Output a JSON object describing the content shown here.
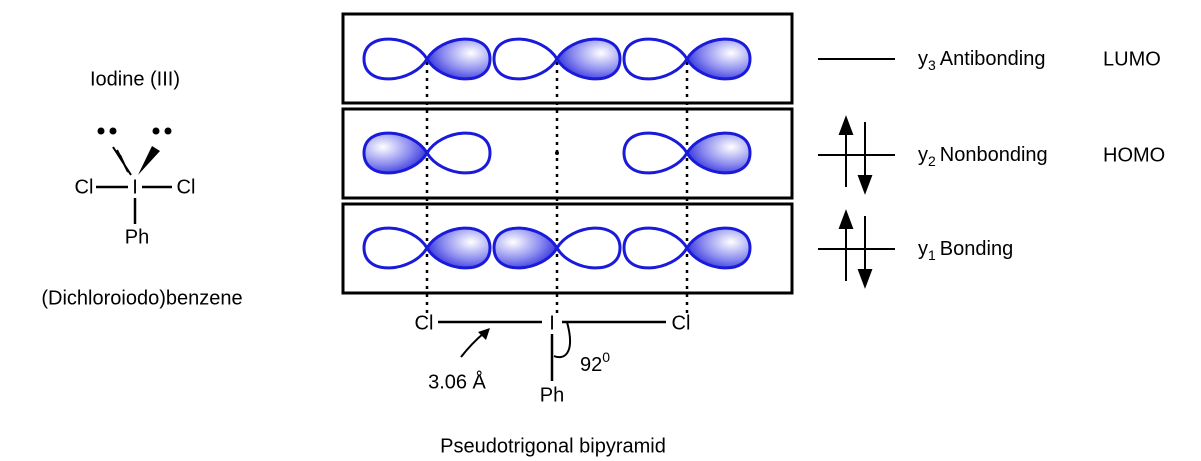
{
  "molecule": {
    "title": "Iodine (III)",
    "atoms": {
      "left": "Cl",
      "center": "I",
      "right": "Cl",
      "bottom": "Ph"
    },
    "name": "(Dichloroiodo)benzene"
  },
  "orbitals": [
    {
      "symbol": "y",
      "subscript": "3",
      "label": "Antibonding",
      "frontier": "LUMO"
    },
    {
      "symbol": "y",
      "subscript": "2",
      "label": "Nonbonding",
      "frontier": "HOMO"
    },
    {
      "symbol": "y",
      "subscript": "1",
      "label": "Bonding"
    }
  ],
  "structure": {
    "atoms": {
      "left": "Cl",
      "center": "I",
      "right": "Cl",
      "bottom": "Ph"
    },
    "bond_length": "3.06 Å",
    "angle": "92",
    "angle_superscript": "0",
    "caption": "Pseudotrigonal bipyramid"
  }
}
